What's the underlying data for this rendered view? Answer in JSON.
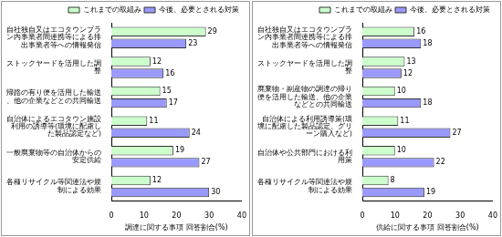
{
  "chart_data": [
    {
      "type": "bar",
      "orientation": "horizontal",
      "categories": [
        "自社独自又はエコタウンプラン内事業者間連携等による排出事業者等への情報発信",
        "ストックヤードを活用した調整",
        "帰路の有り便を活用した輸送、他の企業などとの共同輸送",
        "自治体によるエコタウン施設利用の誘導等(環境に配慮した製品認定など)",
        "一般廃棄物等の自治体からの安定供給",
        "各種リサイクル等関連法や規制による効果"
      ],
      "series": [
        {
          "name": "これまでの取組み",
          "color": "#ccffcc",
          "values": [
            29,
            12,
            15,
            11,
            19,
            12
          ]
        },
        {
          "name": "今後、必要とされる対策",
          "color": "#9999ff",
          "values": [
            23,
            16,
            17,
            24,
            27,
            30
          ]
        }
      ],
      "x_label": "調達に関する事項 回答割合(%)",
      "xlim": [
        0,
        40
      ],
      "xticks": [
        0,
        10,
        20,
        30,
        40
      ],
      "grid": false,
      "legend": "top",
      "data_labels": true
    },
    {
      "type": "bar",
      "orientation": "horizontal",
      "categories": [
        "自社独自又はエコタウンプラン内事業者間連携等による排出事業者等への情報発信",
        "ストックヤードを活用した調整",
        "廃棄物・副産物の調達の帰り便を活用した輸送、他の企業などとの共同輸送",
        "自治体による利用誘導策(環境に配慮した製品認定、グリーン購入など)",
        "自治体や公共部門における利用策",
        "各種リサイクル等関連法や規制による効果"
      ],
      "series": [
        {
          "name": "これまでの取組み",
          "color": "#ccffcc",
          "values": [
            16,
            13,
            10,
            11,
            10,
            8
          ]
        },
        {
          "name": "今後、必要とされる対策",
          "color": "#9999ff",
          "values": [
            18,
            12,
            18,
            27,
            22,
            19
          ]
        }
      ],
      "x_label": "供給に関する事項 回答割合(%)",
      "xlim": [
        0,
        40
      ],
      "xticks": [
        0,
        10,
        20,
        30,
        40
      ],
      "grid": false,
      "legend": "top",
      "data_labels": true
    }
  ]
}
